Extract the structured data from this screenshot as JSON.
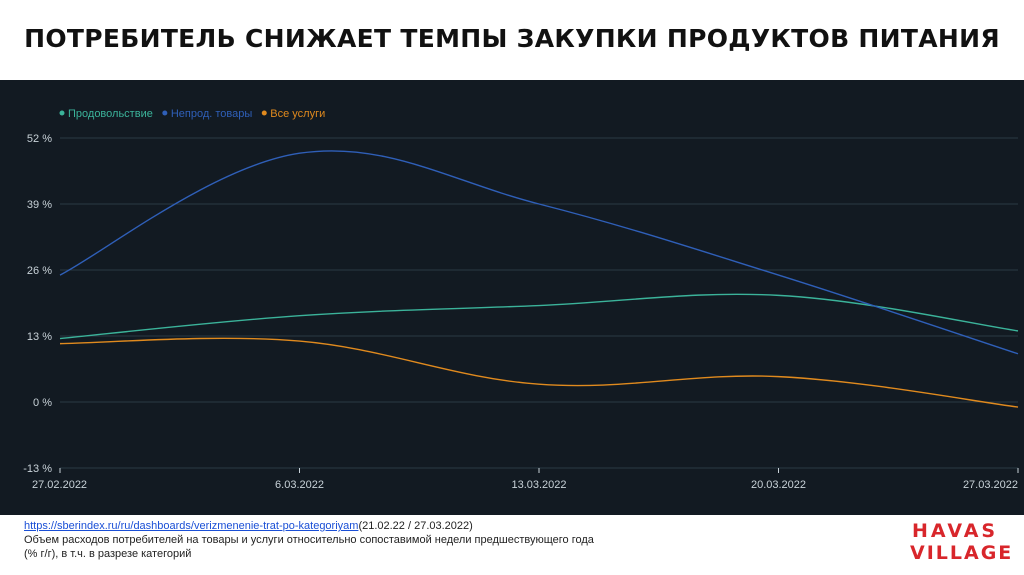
{
  "title": "ПОТРЕБИТЕЛЬ СНИЖАЕТ ТЕМПЫ ЗАКУПКИ ПРОДУКТОВ ПИТАНИЯ",
  "footer": {
    "link_text": "https://sberindex.ru/ru/dashboards/verizmenenie-trat-po-kategoriyam",
    "link_suffix": "(21.02.22 / 27.03.2022)",
    "line2": "Объем расходов потребителей на товары и услуги относительно сопоставимой недели предшествующего года",
    "line3": "(% г/г), в т.ч. в разрезе категорий"
  },
  "logo": {
    "line1": "HAVAS",
    "line2": "VILLAGE",
    "color": "#d8262b"
  },
  "colors": {
    "background": "#121a22",
    "grid": "#2a3a44",
    "axis_text": "#c8d2d8"
  },
  "chart_data": {
    "type": "line",
    "x": [
      "27.02.2022",
      "6.03.2022",
      "13.03.2022",
      "20.03.2022",
      "27.03.2022"
    ],
    "y_ticks": [
      "52 %",
      "39 %",
      "26 %",
      "13 %",
      "0 %",
      "-13 %"
    ],
    "y_tick_values": [
      52,
      39,
      26,
      13,
      0,
      -13
    ],
    "ylim": [
      -13,
      52
    ],
    "grid": true,
    "legend_position": "top-left",
    "series": [
      {
        "name": "Продовольствие",
        "color": "#3bb39a",
        "values": [
          12.5,
          17,
          19,
          21,
          14
        ]
      },
      {
        "name": "Непрод. товары",
        "color": "#2f5fb8",
        "values": [
          25,
          49,
          39,
          25,
          9.5
        ]
      },
      {
        "name": "Все услуги",
        "color": "#e08a1e",
        "values": [
          11.5,
          12,
          3.5,
          5,
          -1
        ]
      }
    ]
  }
}
